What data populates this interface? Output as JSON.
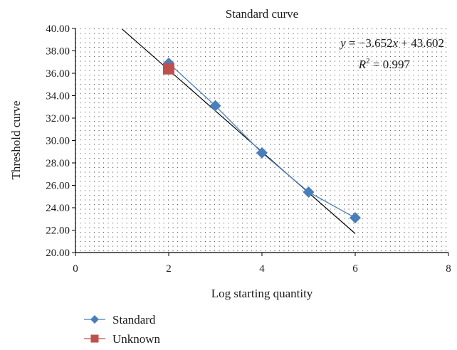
{
  "chart_data": {
    "type": "scatter",
    "title": "Standard curve",
    "xlabel": "Log starting quantity",
    "ylabel": "Threshold curve",
    "xlim": [
      0,
      8
    ],
    "ylim": [
      20,
      40
    ],
    "x_ticks": [
      "0",
      "2",
      "4",
      "6",
      "8"
    ],
    "y_ticks": [
      "20.00",
      "22.00",
      "24.00",
      "26.00",
      "28.00",
      "30.00",
      "32.00",
      "34.00",
      "36.00",
      "38.00",
      "40.00"
    ],
    "grid": "dotted",
    "legend_position": "bottom-left",
    "series": [
      {
        "name": "Standard",
        "marker": "diamond",
        "color": "#4a7ebb",
        "x": [
          2,
          3,
          4,
          5,
          6
        ],
        "y": [
          36.9,
          33.1,
          28.9,
          25.4,
          23.1
        ]
      },
      {
        "name": "Unknown",
        "marker": "square",
        "color": "#c0504d",
        "x": [
          2
        ],
        "y": [
          36.4
        ]
      }
    ],
    "trendline": {
      "slope": -3.652,
      "intercept": 43.602,
      "x_range": [
        1,
        6
      ],
      "color": "#000000"
    },
    "annotations": {
      "equation_y": "y",
      "equation_x": "x",
      "equation_rest_1": " = −3.652",
      "equation_rest_2": " + 43.602",
      "r2_r": "R",
      "r2_sup": "2",
      "r2_rest": " = 0.997"
    }
  }
}
